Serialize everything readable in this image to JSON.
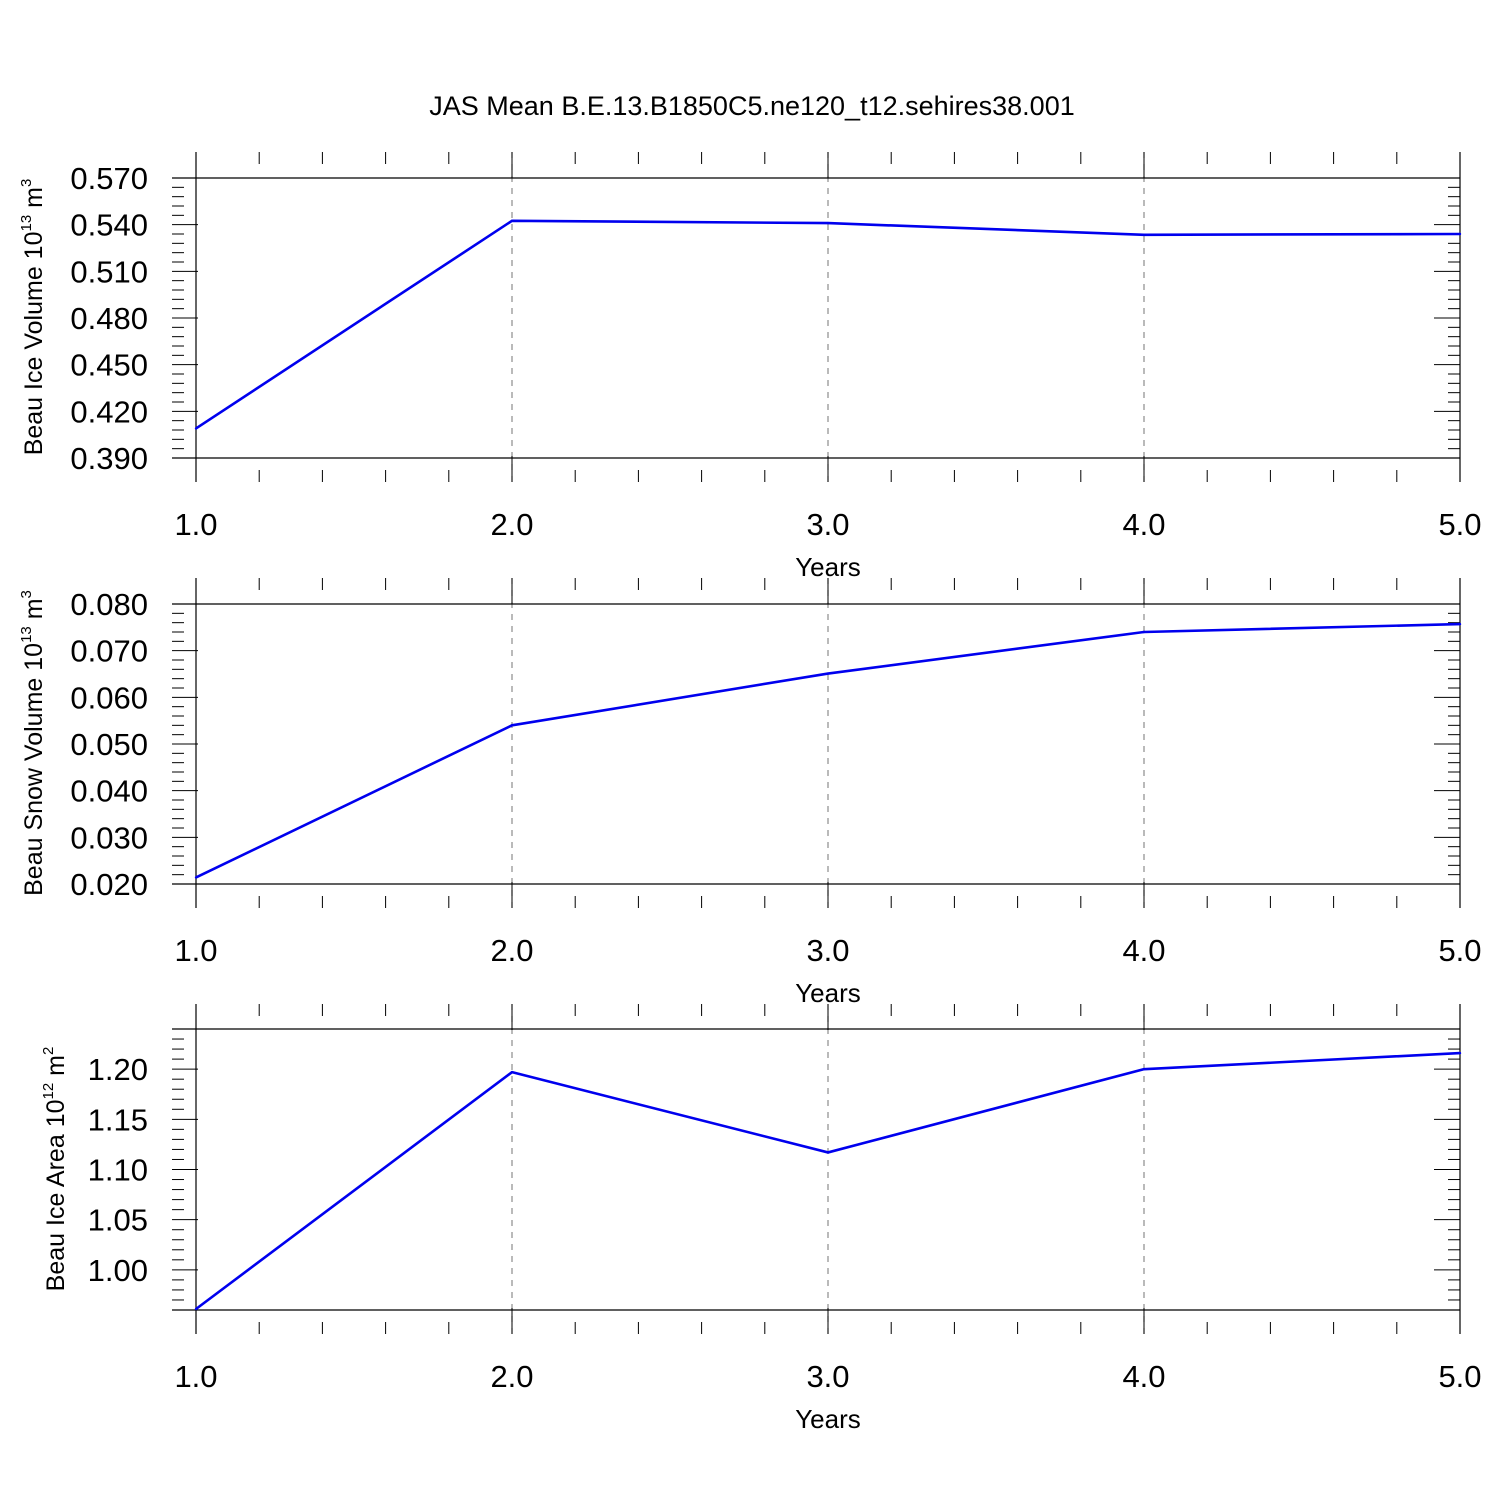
{
  "title": "JAS Mean B.E.13.B1850C5.ne120_t12.sehires38.001",
  "colors": {
    "line": "#0000ee",
    "axis": "#000000",
    "grid": "#8c8c8c",
    "background": "#ffffff"
  },
  "chart_data": [
    {
      "type": "line",
      "xlabel": "Years",
      "ylabel": {
        "text": "Beau Ice Volume 10",
        "exp": "13",
        "unit": " m",
        "unit_exp": "3"
      },
      "x": [
        1,
        2,
        3,
        4,
        5
      ],
      "xlim": [
        1,
        5
      ],
      "xticks": [
        "1.0",
        "2.0",
        "3.0",
        "4.0",
        "5.0"
      ],
      "ylim": [
        0.39,
        0.57
      ],
      "yticks": [
        "0.570",
        "0.540",
        "0.510",
        "0.480",
        "0.450",
        "0.420",
        "0.390"
      ],
      "series": [
        {
          "values": [
            0.409,
            0.5425,
            0.541,
            0.5335,
            0.534
          ]
        }
      ],
      "vertical_grid": true
    },
    {
      "type": "line",
      "xlabel": "Years",
      "ylabel": {
        "text": "Beau Snow Volume 10",
        "exp": "13",
        "unit": " m",
        "unit_exp": "3"
      },
      "x": [
        1,
        2,
        3,
        4,
        5
      ],
      "xlim": [
        1,
        5
      ],
      "xticks": [
        "1.0",
        "2.0",
        "3.0",
        "4.0",
        "5.0"
      ],
      "ylim": [
        0.02,
        0.08
      ],
      "yticks": [
        "0.080",
        "0.070",
        "0.060",
        "0.050",
        "0.040",
        "0.030",
        "0.020"
      ],
      "series": [
        {
          "values": [
            0.0214,
            0.054,
            0.0651,
            0.074,
            0.0757
          ]
        }
      ],
      "vertical_grid": true
    },
    {
      "type": "line",
      "xlabel": "Years",
      "ylabel": {
        "text": "Beau Ice Area 10",
        "exp": "12",
        "unit": " m",
        "unit_exp": "2"
      },
      "x": [
        1,
        2,
        3,
        4,
        5
      ],
      "xlim": [
        1,
        5
      ],
      "xticks": [
        "1.0",
        "2.0",
        "3.0",
        "4.0",
        "5.0"
      ],
      "ylim": [
        0.96,
        1.24
      ],
      "yticks": [
        "1.20",
        "1.15",
        "1.10",
        "1.05",
        "1.00"
      ],
      "series": [
        {
          "values": [
            0.961,
            1.197,
            1.117,
            1.2,
            1.216
          ]
        }
      ],
      "vertical_grid": true
    }
  ]
}
